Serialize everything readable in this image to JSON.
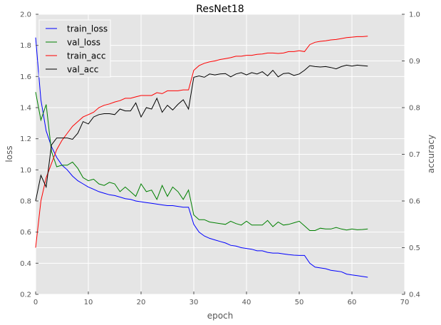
{
  "chart_data": {
    "type": "line",
    "title": "ResNet18",
    "xlabel": "epoch",
    "ylabel": "loss",
    "ylabel_right": "accuracy",
    "xlim": [
      0,
      70
    ],
    "ylim": [
      0.2,
      2.0
    ],
    "ylim_right": [
      0.4,
      1.0
    ],
    "xticks": [
      "0",
      "10",
      "20",
      "30",
      "40",
      "50",
      "60",
      "70"
    ],
    "yticks": [
      "0.2",
      "0.4",
      "0.6",
      "0.8",
      "1.0",
      "1.2",
      "1.4",
      "1.6",
      "1.8",
      "2.0"
    ],
    "yticks_right": [
      "0.4",
      "0.5",
      "0.6",
      "0.7",
      "0.8",
      "0.9",
      "1.0"
    ],
    "grid": true,
    "legend_position": "top-left",
    "series": [
      {
        "name": "train_loss",
        "axis": "left",
        "color": "#0000ff",
        "values": [
          1.85,
          1.45,
          1.25,
          1.15,
          1.08,
          1.03,
          1.0,
          0.96,
          0.93,
          0.91,
          0.89,
          0.875,
          0.86,
          0.85,
          0.84,
          0.835,
          0.825,
          0.815,
          0.81,
          0.8,
          0.795,
          0.79,
          0.785,
          0.78,
          0.775,
          0.77,
          0.77,
          0.765,
          0.76,
          0.76,
          0.65,
          0.6,
          0.575,
          0.56,
          0.55,
          0.54,
          0.53,
          0.515,
          0.51,
          0.5,
          0.495,
          0.49,
          0.48,
          0.48,
          0.47,
          0.465,
          0.465,
          0.46,
          0.455,
          0.452,
          0.45,
          0.45,
          0.4,
          0.375,
          0.37,
          0.365,
          0.355,
          0.35,
          0.345,
          0.33,
          0.325,
          0.32,
          0.315,
          0.31
        ]
      },
      {
        "name": "val_loss",
        "axis": "left",
        "color": "#008000",
        "values": [
          1.5,
          1.32,
          1.42,
          1.12,
          1.02,
          1.03,
          1.03,
          1.05,
          1.01,
          0.95,
          0.93,
          0.94,
          0.91,
          0.9,
          0.92,
          0.91,
          0.86,
          0.89,
          0.86,
          0.83,
          0.91,
          0.86,
          0.87,
          0.81,
          0.9,
          0.83,
          0.89,
          0.86,
          0.81,
          0.87,
          0.71,
          0.68,
          0.68,
          0.665,
          0.66,
          0.655,
          0.65,
          0.67,
          0.655,
          0.645,
          0.67,
          0.645,
          0.645,
          0.645,
          0.675,
          0.635,
          0.665,
          0.645,
          0.65,
          0.66,
          0.67,
          0.64,
          0.61,
          0.61,
          0.625,
          0.62,
          0.62,
          0.63,
          0.62,
          0.613,
          0.62,
          0.615,
          0.617,
          0.62
        ]
      },
      {
        "name": "train_acc",
        "axis": "right",
        "color": "#ff0000",
        "values": [
          0.5,
          0.6,
          0.65,
          0.68,
          0.71,
          0.73,
          0.745,
          0.76,
          0.77,
          0.78,
          0.785,
          0.79,
          0.8,
          0.805,
          0.808,
          0.812,
          0.815,
          0.82,
          0.82,
          0.823,
          0.826,
          0.826,
          0.826,
          0.832,
          0.83,
          0.836,
          0.836,
          0.836,
          0.838,
          0.838,
          0.88,
          0.89,
          0.895,
          0.898,
          0.9,
          0.903,
          0.905,
          0.907,
          0.91,
          0.91,
          0.912,
          0.912,
          0.914,
          0.915,
          0.917,
          0.917,
          0.916,
          0.917,
          0.92,
          0.92,
          0.922,
          0.92,
          0.935,
          0.94,
          0.942,
          0.943,
          0.945,
          0.946,
          0.948,
          0.95,
          0.951,
          0.952,
          0.952,
          0.953
        ]
      },
      {
        "name": "val_acc",
        "axis": "right",
        "color": "#000000",
        "values": [
          0.6,
          0.655,
          0.63,
          0.72,
          0.735,
          0.735,
          0.735,
          0.732,
          0.745,
          0.77,
          0.765,
          0.78,
          0.785,
          0.787,
          0.787,
          0.785,
          0.797,
          0.793,
          0.793,
          0.81,
          0.78,
          0.8,
          0.797,
          0.82,
          0.79,
          0.805,
          0.795,
          0.807,
          0.817,
          0.797,
          0.865,
          0.868,
          0.865,
          0.872,
          0.87,
          0.872,
          0.873,
          0.866,
          0.872,
          0.875,
          0.87,
          0.875,
          0.872,
          0.877,
          0.868,
          0.88,
          0.866,
          0.873,
          0.874,
          0.869,
          0.872,
          0.88,
          0.89,
          0.888,
          0.887,
          0.888,
          0.886,
          0.883,
          0.888,
          0.891,
          0.889,
          0.891,
          0.89,
          0.889
        ]
      }
    ]
  }
}
